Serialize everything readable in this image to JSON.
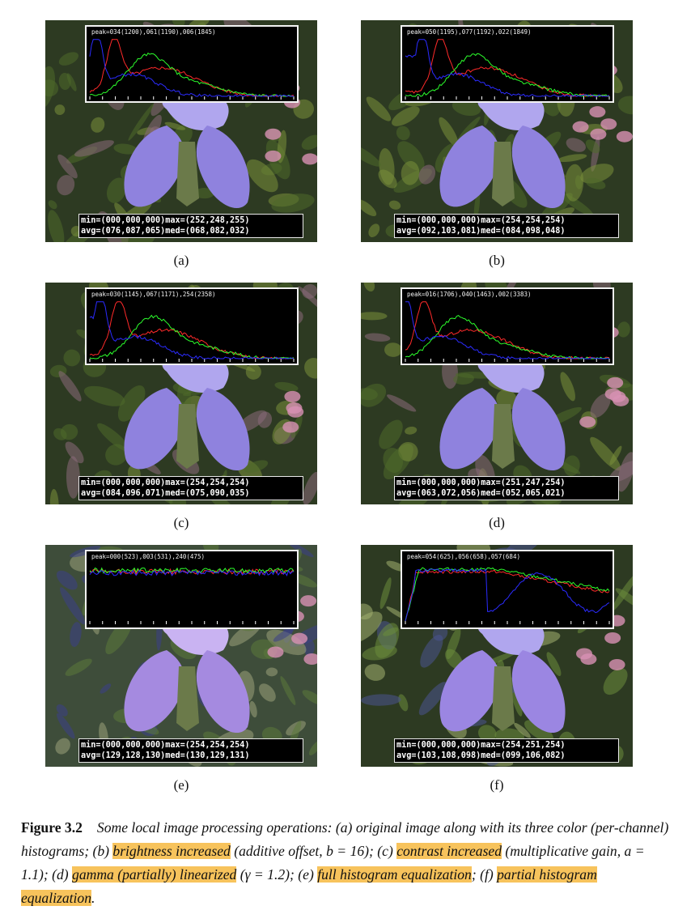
{
  "panels": [
    {
      "id": "a",
      "label": "(a)",
      "peak": "peak=034(1200),061(1190),006(1845)",
      "stats": [
        "min=(000,000,000)max=(252,248,255)",
        "avg=(076,087,065)med=(068,082,032)"
      ],
      "mode": "normal"
    },
    {
      "id": "b",
      "label": "(b)",
      "peak": "peak=050(1195),077(1192),022(1849)",
      "stats": [
        "min=(000,000,000)max=(254,254,254)",
        "avg=(092,103,081)med=(084,098,048)"
      ],
      "mode": "normal"
    },
    {
      "id": "c",
      "label": "(c)",
      "peak": "peak=030(1145),067(1171),254(2358)",
      "stats": [
        "min=(000,000,000)max=(254,254,254)",
        "avg=(084,096,071)med=(075,090,035)"
      ],
      "mode": "normal"
    },
    {
      "id": "d",
      "label": "(d)",
      "peak": "peak=016(1706),040(1463),002(3383)",
      "stats": [
        "min=(000,000,000)max=(251,247,254)",
        "avg=(063,072,056)med=(052,065,021)"
      ],
      "mode": "normal"
    },
    {
      "id": "e",
      "label": "(e)",
      "peak": "peak=000(523),003(531),240(475)",
      "stats": [
        "min=(000,000,000)max=(254,254,254)",
        "avg=(129,128,130)med=(130,129,131)"
      ],
      "mode": "flat"
    },
    {
      "id": "f",
      "label": "(f)",
      "peak": "peak=054(625),056(658),057(684)",
      "stats": [
        "min=(000,000,000)max=(254,251,254)",
        "avg=(103,108,098)med=(099,106,082)"
      ],
      "mode": "partial"
    }
  ],
  "caption": {
    "figure": "Figure 3.2",
    "t1": "Some local image processing operations: (a) original image along with its three color (per-channel) histograms; (b) ",
    "h1": "brightness increased",
    "t2": " (additive offset, b = 16); (c) ",
    "h2": "contrast increased",
    "t3": " (multiplicative gain, a = 1.1); (d) ",
    "h3": "gamma (partially) linearized",
    "t4": " (γ = 1.2); (e) ",
    "h4": "full histogram equalization",
    "t5": "; (f) ",
    "h5": "partial histogram equalization",
    "t6": "."
  },
  "colors": {
    "highlight": "#f7c35c",
    "red": "#ff2a2a",
    "green": "#2cff2c",
    "blue": "#2b2bff"
  }
}
